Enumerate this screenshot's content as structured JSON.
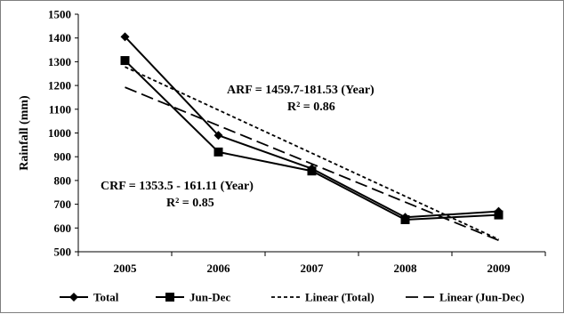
{
  "chart_data": {
    "type": "line",
    "categories": [
      "2005",
      "2006",
      "2007",
      "2008",
      "2009"
    ],
    "ylabel": "Rainfall (mm)",
    "xlabel": "",
    "ylim": [
      500,
      1500
    ],
    "yticks": [
      "500",
      "600",
      "700",
      "800",
      "900",
      "1000",
      "1100",
      "1200",
      "1300",
      "1400",
      "1500"
    ],
    "grid": false,
    "legend_position": "bottom",
    "series": [
      {
        "name": "Total",
        "values": [
          1405,
          990,
          850,
          645,
          670
        ],
        "style": "solid",
        "marker": "diamond",
        "color": "#000000"
      },
      {
        "name": "Jun-Dec",
        "values": [
          1305,
          920,
          840,
          635,
          655
        ],
        "style": "solid",
        "marker": "square",
        "color": "#000000"
      },
      {
        "name": "Linear (Total)",
        "values": [
          1278.17,
          1096.64,
          915.11,
          733.58,
          552.05
        ],
        "style": "short-dash",
        "marker": "none",
        "color": "#000000"
      },
      {
        "name": "Linear (Jun-Dec)",
        "values": [
          1192.39,
          1031.28,
          870.17,
          709.06,
          547.95
        ],
        "style": "long-dash",
        "marker": "none",
        "color": "#000000"
      }
    ],
    "annotations": [
      {
        "line1": "ARF = 1459.7-181.53 (Year)",
        "line2": "R² = 0.86"
      },
      {
        "line1": "CRF = 1353.5 - 161.11 (Year)",
        "line2": "R² = 0.85"
      }
    ]
  }
}
